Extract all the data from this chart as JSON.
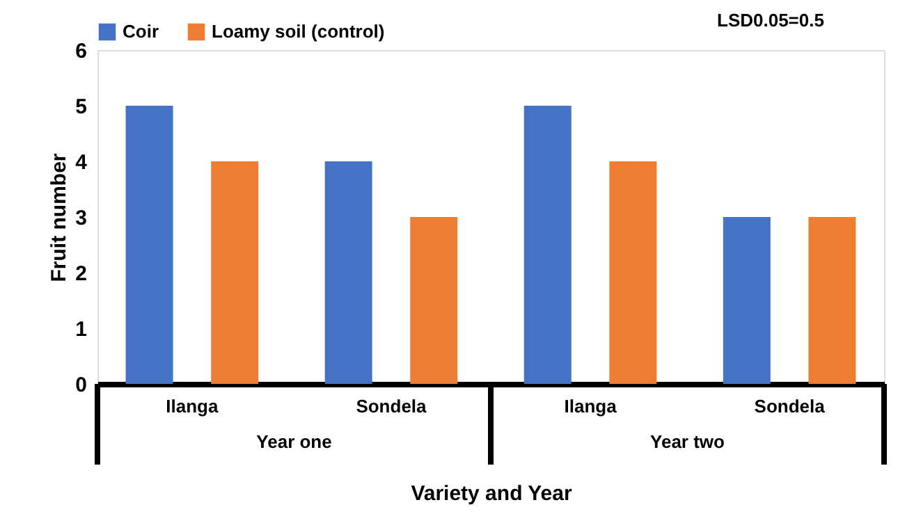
{
  "chart_data": {
    "type": "bar",
    "ylabel": "Fruit number",
    "xlabel": "Variety and Year",
    "categories": [
      "Ilanga",
      "Sondela",
      "Ilanga",
      "Sondela"
    ],
    "series": [
      {
        "name": "Coir",
        "color": "#4472c4",
        "values": [
          5,
          4,
          5,
          3
        ]
      },
      {
        "name": "Loamy soil (control)",
        "color": "#ed7d31",
        "values": [
          4,
          3,
          4,
          3
        ]
      }
    ],
    "ylim": [
      0,
      6
    ],
    "yticks": [
      0,
      1,
      2,
      3,
      4,
      5,
      6
    ],
    "grid": false,
    "legend": "top",
    "annotations": [
      "Year one",
      "Year two",
      "LSD0.05=0.5"
    ]
  }
}
